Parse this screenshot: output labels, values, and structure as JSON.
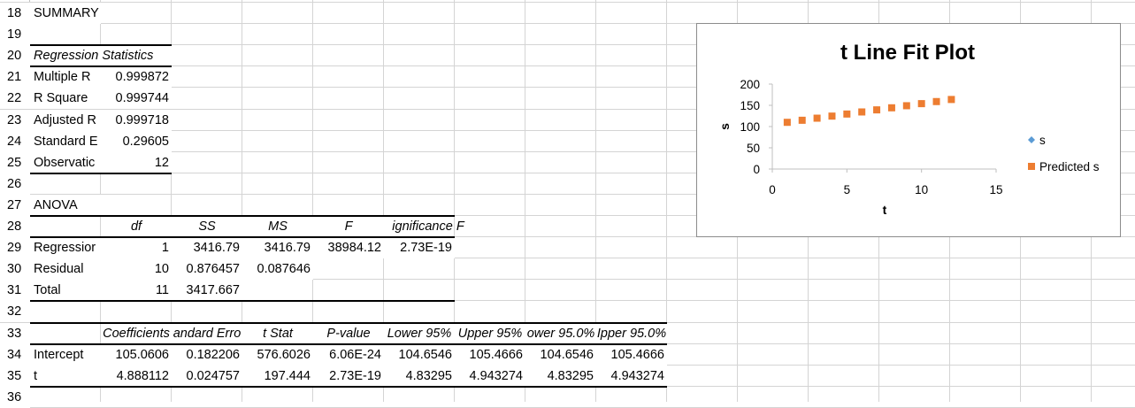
{
  "rows": [
    {
      "num": "18",
      "cells": [
        {
          "col": 1,
          "text": "SUMMARY OUTPUT",
          "cls": "l"
        }
      ]
    },
    {
      "num": "19",
      "cells": []
    },
    {
      "num": "20",
      "cells": [
        {
          "col": 1,
          "text": "Regression Statistics",
          "cls": "l it",
          "span": 2
        }
      ]
    },
    {
      "num": "21",
      "cells": [
        {
          "col": 1,
          "text": "Multiple R",
          "cls": "l"
        },
        {
          "col": 2,
          "text": "0.999872",
          "cls": "r"
        }
      ]
    },
    {
      "num": "22",
      "cells": [
        {
          "col": 1,
          "text": "R Square",
          "cls": "l"
        },
        {
          "col": 2,
          "text": "0.999744",
          "cls": "r"
        }
      ]
    },
    {
      "num": "23",
      "cells": [
        {
          "col": 1,
          "text": "Adjusted R",
          "cls": "l"
        },
        {
          "col": 2,
          "text": "0.999718",
          "cls": "r"
        }
      ]
    },
    {
      "num": "24",
      "cells": [
        {
          "col": 1,
          "text": "Standard E",
          "cls": "l"
        },
        {
          "col": 2,
          "text": "0.29605",
          "cls": "r"
        }
      ]
    },
    {
      "num": "25",
      "cells": [
        {
          "col": 1,
          "text": "Observatic",
          "cls": "l"
        },
        {
          "col": 2,
          "text": "12",
          "cls": "r"
        }
      ]
    },
    {
      "num": "26",
      "cells": []
    },
    {
      "num": "27",
      "cells": [
        {
          "col": 1,
          "text": "ANOVA",
          "cls": "l"
        }
      ]
    },
    {
      "num": "28",
      "cells": [
        {
          "col": 2,
          "text": "df",
          "cls": "c it"
        },
        {
          "col": 3,
          "text": "SS",
          "cls": "c it"
        },
        {
          "col": 4,
          "text": "MS",
          "cls": "c it"
        },
        {
          "col": 5,
          "text": "F",
          "cls": "c it"
        },
        {
          "col": 6,
          "text": "ignificance F",
          "cls": "c it",
          "overflow": true
        }
      ]
    },
    {
      "num": "29",
      "cells": [
        {
          "col": 1,
          "text": "Regressior",
          "cls": "l"
        },
        {
          "col": 2,
          "text": "1",
          "cls": "r"
        },
        {
          "col": 3,
          "text": "3416.79",
          "cls": "r"
        },
        {
          "col": 4,
          "text": "3416.79",
          "cls": "r"
        },
        {
          "col": 5,
          "text": "38984.12",
          "cls": "r"
        },
        {
          "col": 6,
          "text": "2.73E-19",
          "cls": "r"
        }
      ]
    },
    {
      "num": "30",
      "cells": [
        {
          "col": 1,
          "text": "Residual",
          "cls": "l"
        },
        {
          "col": 2,
          "text": "10",
          "cls": "r"
        },
        {
          "col": 3,
          "text": "0.876457",
          "cls": "r"
        },
        {
          "col": 4,
          "text": "0.087646",
          "cls": "r"
        }
      ]
    },
    {
      "num": "31",
      "cells": [
        {
          "col": 1,
          "text": "Total",
          "cls": "l"
        },
        {
          "col": 2,
          "text": "11",
          "cls": "r"
        },
        {
          "col": 3,
          "text": "3417.667",
          "cls": "r"
        }
      ]
    },
    {
      "num": "32",
      "cells": []
    },
    {
      "num": "33",
      "cells": [
        {
          "col": 2,
          "text": "Coefficients",
          "cls": "c it"
        },
        {
          "col": 3,
          "text": "andard Erro",
          "cls": "c it"
        },
        {
          "col": 4,
          "text": "t Stat",
          "cls": "c it"
        },
        {
          "col": 5,
          "text": "P-value",
          "cls": "c it"
        },
        {
          "col": 6,
          "text": "Lower 95%",
          "cls": "c it"
        },
        {
          "col": 7,
          "text": "Upper 95%",
          "cls": "c it"
        },
        {
          "col": 8,
          "text": "ower 95.0%",
          "cls": "c it"
        },
        {
          "col": 9,
          "text": "Ipper 95.0%",
          "cls": "c it"
        }
      ]
    },
    {
      "num": "34",
      "cells": [
        {
          "col": 1,
          "text": "Intercept",
          "cls": "l"
        },
        {
          "col": 2,
          "text": "105.0606",
          "cls": "r"
        },
        {
          "col": 3,
          "text": "0.182206",
          "cls": "r"
        },
        {
          "col": 4,
          "text": "576.6026",
          "cls": "r"
        },
        {
          "col": 5,
          "text": "6.06E-24",
          "cls": "r"
        },
        {
          "col": 6,
          "text": "104.6546",
          "cls": "r"
        },
        {
          "col": 7,
          "text": "105.4666",
          "cls": "r"
        },
        {
          "col": 8,
          "text": "104.6546",
          "cls": "r"
        },
        {
          "col": 9,
          "text": "105.4666",
          "cls": "r"
        }
      ]
    },
    {
      "num": "35",
      "cells": [
        {
          "col": 1,
          "text": "t",
          "cls": "l"
        },
        {
          "col": 2,
          "text": "4.888112",
          "cls": "r"
        },
        {
          "col": 3,
          "text": "0.024757",
          "cls": "r"
        },
        {
          "col": 4,
          "text": "197.444",
          "cls": "r"
        },
        {
          "col": 5,
          "text": "2.73E-19",
          "cls": "r"
        },
        {
          "col": 6,
          "text": "4.83295",
          "cls": "r"
        },
        {
          "col": 7,
          "text": "4.943274",
          "cls": "r"
        },
        {
          "col": 8,
          "text": "4.83295",
          "cls": "r"
        },
        {
          "col": 9,
          "text": "4.943274",
          "cls": "r"
        }
      ]
    },
    {
      "num": "36",
      "cells": []
    }
  ],
  "chart_data": {
    "type": "scatter",
    "title": "t Line Fit  Plot",
    "xlabel": "t",
    "ylabel": "s",
    "xlim": [
      0,
      15
    ],
    "ylim": [
      0,
      200
    ],
    "xticks": [
      "0",
      "5",
      "10",
      "15"
    ],
    "yticks": [
      "0",
      "50",
      "100",
      "150",
      "200"
    ],
    "legend_position": "right",
    "series": [
      {
        "name": "s",
        "marker": "diamond",
        "color": "#5b9bd5",
        "x": [
          1,
          2,
          3,
          4,
          5,
          6,
          7,
          8,
          9,
          10,
          11,
          12
        ],
        "y": [
          109.9,
          114.8,
          119.7,
          124.6,
          129.5,
          134.4,
          139.3,
          144.2,
          149.1,
          154.0,
          158.8,
          163.7
        ]
      },
      {
        "name": "Predicted s",
        "marker": "square",
        "color": "#ed7d31",
        "x": [
          1,
          2,
          3,
          4,
          5,
          6,
          7,
          8,
          9,
          10,
          11,
          12
        ],
        "y": [
          109.95,
          114.84,
          119.72,
          124.61,
          129.5,
          134.39,
          139.28,
          144.17,
          149.05,
          153.94,
          158.83,
          163.72
        ]
      }
    ]
  }
}
